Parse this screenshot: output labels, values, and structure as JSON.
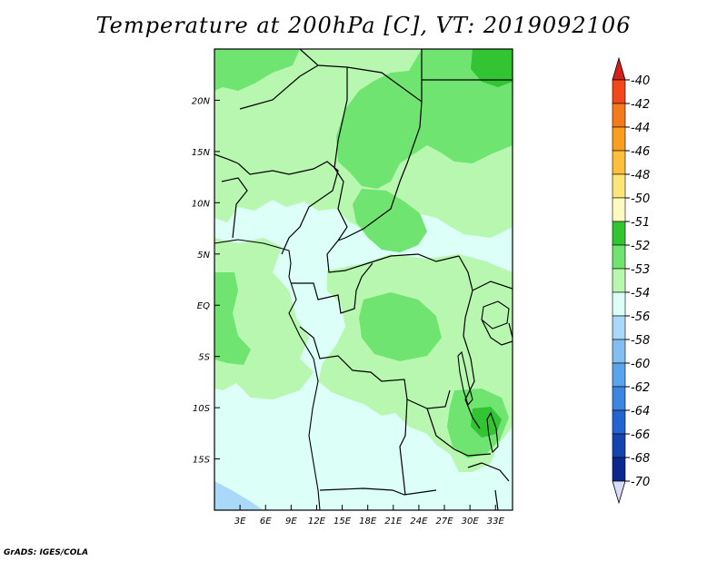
{
  "title": "Temperature at 200hPa [C], VT: 2019092106",
  "credit": "GrADS: IGES/COLA",
  "map": {
    "lon_range": [
      0,
      35
    ],
    "lat_range": [
      -20,
      25
    ],
    "lat_ticks": [
      {
        "label": "20N",
        "lat": 20
      },
      {
        "label": "15N",
        "lat": 15
      },
      {
        "label": "10N",
        "lat": 10
      },
      {
        "label": "5N",
        "lat": 5
      },
      {
        "label": "EQ",
        "lat": 0
      },
      {
        "label": "5S",
        "lat": -5
      },
      {
        "label": "10S",
        "lat": -10
      },
      {
        "label": "15S",
        "lat": -15
      }
    ],
    "lon_ticks": [
      {
        "label": "3E",
        "lon": 3
      },
      {
        "label": "6E",
        "lon": 6
      },
      {
        "label": "9E",
        "lon": 9
      },
      {
        "label": "12E",
        "lon": 12
      },
      {
        "label": "15E",
        "lon": 15
      },
      {
        "label": "18E",
        "lon": 18
      },
      {
        "label": "21E",
        "lon": 21
      },
      {
        "label": "24E",
        "lon": 24
      },
      {
        "label": "27E",
        "lon": 27
      },
      {
        "label": "30E",
        "lon": 30
      },
      {
        "label": "33E",
        "lon": 33
      }
    ]
  },
  "colorbar": {
    "levels": [
      {
        "label": "-40",
        "color": "#e8281e"
      },
      {
        "label": "-42",
        "color": "#f04818"
      },
      {
        "label": "-44",
        "color": "#f57a1c"
      },
      {
        "label": "-46",
        "color": "#fa9e20"
      },
      {
        "label": "-48",
        "color": "#fcc03c"
      },
      {
        "label": "-50",
        "color": "#fde678"
      },
      {
        "label": "-51",
        "color": "#fdfbc0"
      },
      {
        "label": "-52",
        "color": "#32c432"
      },
      {
        "label": "-53",
        "color": "#70e470"
      },
      {
        "label": "-54",
        "color": "#b8f7b0"
      },
      {
        "label": "-56",
        "color": "#dcfff8"
      },
      {
        "label": "-58",
        "color": "#aad8f8"
      },
      {
        "label": "-60",
        "color": "#82bff0"
      },
      {
        "label": "-62",
        "color": "#5aa4ec"
      },
      {
        "label": "-64",
        "color": "#3c86e0"
      },
      {
        "label": "-66",
        "color": "#2464d0"
      },
      {
        "label": "-68",
        "color": "#1444b0"
      },
      {
        "label": "-70",
        "color": "#0c2890"
      }
    ],
    "top_color": "#d8201a",
    "bottom_color": "#d8dcf8"
  }
}
